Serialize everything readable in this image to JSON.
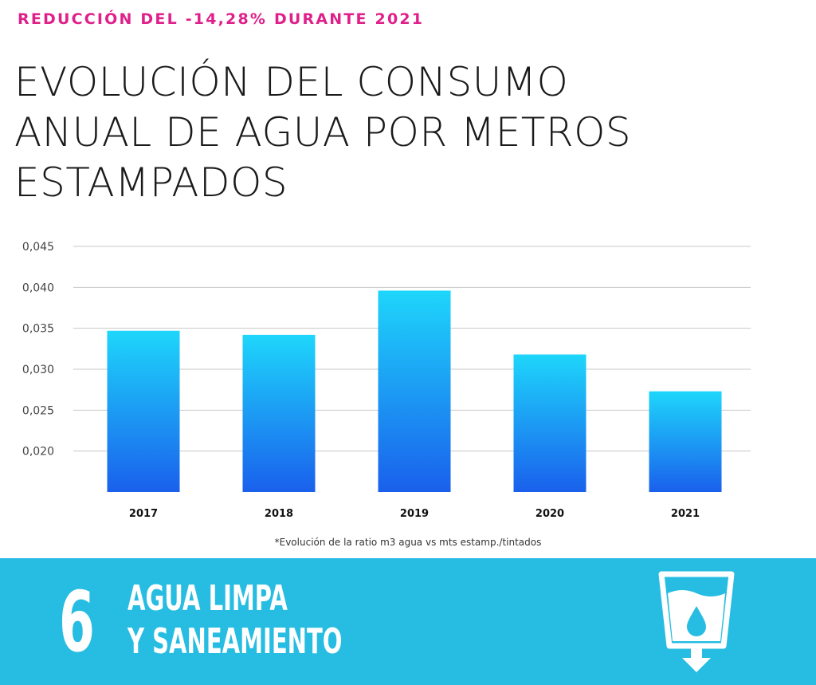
{
  "header": {
    "kicker": "REDUCCIÓN DEL -14,28% DURANTE 2021",
    "title_lines": [
      "EVOLUCIÓN DEL CONSUMO",
      "ANUAL DE AGUA POR METROS",
      "ESTAMPADOS"
    ]
  },
  "chart_data": {
    "type": "bar",
    "title": "EVOLUCIÓN DEL CONSUMO ANUAL DE AGUA POR METROS ESTAMPADOS",
    "categories": [
      "2017",
      "2018",
      "2019",
      "2020",
      "2021"
    ],
    "values": [
      0.0347,
      0.0342,
      0.0396,
      0.0318,
      0.0273
    ],
    "y_ticks": [
      "0,045",
      "0,040",
      "0,035",
      "0,030",
      "0,025",
      "0,020"
    ],
    "y_tick_values": [
      0.045,
      0.04,
      0.035,
      0.03,
      0.025,
      0.02
    ],
    "ylim": [
      0.015,
      0.045
    ],
    "grid": true,
    "bar_gradient": [
      "#1ed6fb",
      "#1a60ec"
    ]
  },
  "footnote": "*Evolución de la ratio m3 agua vs mts estamp./tintados",
  "sdg": {
    "number": "6",
    "label_lines": [
      "AGUA LIMPA",
      "Y SANEAMIENTO"
    ],
    "icon": "water-glass-icon",
    "color": "#27bde2"
  }
}
